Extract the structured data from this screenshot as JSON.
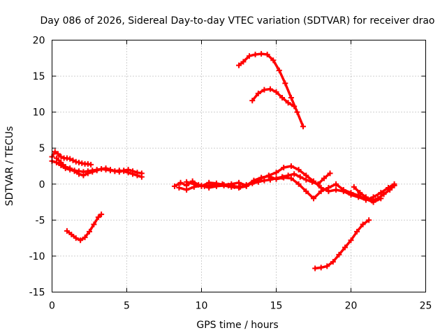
{
  "chart_data": {
    "type": "scatter",
    "title": "Day 086 of 2026, Sidereal Day-to-day VTEC variation (SDTVAR) for receiver drao",
    "xlabel": "GPS time / hours",
    "ylabel": "SDTVAR / TECUs",
    "xlim": [
      0,
      25
    ],
    "ylim": [
      -15,
      20
    ],
    "xticks": [
      "0",
      "5",
      "10",
      "15",
      "20",
      "25"
    ],
    "yticks": [
      "-15",
      "-10",
      "-5",
      "0",
      "5",
      "10",
      "15",
      "20"
    ],
    "grid": true,
    "marker_color": "#ff0000",
    "series": [
      {
        "name": "trace-1",
        "x": [
          0.0,
          0.2,
          0.4,
          0.6,
          0.8,
          1.0,
          1.2,
          1.4,
          1.6,
          1.8,
          2.0,
          2.2,
          2.4,
          2.6
        ],
        "y": [
          3.8,
          4.5,
          4.2,
          3.8,
          3.6,
          3.6,
          3.5,
          3.3,
          3.1,
          3.0,
          2.9,
          2.8,
          2.8,
          2.7
        ]
      },
      {
        "name": "trace-2",
        "x": [
          0.0,
          0.3,
          0.6,
          0.9,
          1.2,
          1.5,
          1.8,
          2.1,
          2.4,
          2.7,
          3.0,
          3.3,
          3.6,
          3.9,
          4.2,
          4.5,
          4.8,
          5.1,
          5.4,
          5.7,
          6.0
        ],
        "y": [
          3.2,
          3.0,
          2.6,
          2.2,
          2.0,
          1.9,
          1.8,
          1.7,
          1.8,
          1.9,
          2.0,
          2.1,
          2.0,
          1.9,
          1.8,
          1.9,
          1.8,
          1.6,
          1.4,
          1.2,
          1.0
        ]
      },
      {
        "name": "trace-3",
        "x": [
          0.3,
          0.6,
          0.9,
          1.2,
          1.5,
          1.8,
          2.1,
          2.4,
          2.7,
          3.0,
          3.3,
          3.6,
          3.9,
          4.2,
          4.5,
          4.8,
          5.1,
          5.4,
          5.7,
          6.0
        ],
        "y": [
          3.6,
          3.0,
          2.4,
          2.2,
          1.8,
          1.4,
          1.2,
          1.5,
          1.7,
          1.9,
          2.1,
          2.2,
          2.0,
          1.8,
          1.7,
          1.9,
          2.0,
          1.8,
          1.6,
          1.5
        ]
      },
      {
        "name": "trace-4",
        "x": [
          1.0,
          1.3,
          1.6,
          1.9,
          2.2,
          2.5,
          2.8,
          3.1,
          3.3
        ],
        "y": [
          -6.5,
          -7.0,
          -7.5,
          -7.8,
          -7.4,
          -6.6,
          -5.6,
          -4.6,
          -4.2
        ]
      },
      {
        "name": "trace-5",
        "x": [
          8.2,
          8.6,
          9.0,
          9.4,
          9.8,
          10.2,
          10.6,
          11.0,
          11.4,
          11.8,
          12.2,
          12.6,
          13.0,
          13.4,
          13.8,
          14.2,
          14.6,
          15.0,
          15.4,
          15.8,
          16.2,
          16.6,
          17.0,
          17.4,
          17.8,
          18.2,
          18.6
        ],
        "y": [
          -0.3,
          0.2,
          -0.2,
          0.4,
          -0.1,
          -0.3,
          -0.2,
          -0.1,
          0.0,
          -0.2,
          -0.3,
          -0.4,
          -0.1,
          0.1,
          0.3,
          0.5,
          0.6,
          0.8,
          1.0,
          1.2,
          1.4,
          1.0,
          0.6,
          0.3,
          0.0,
          0.8,
          1.5
        ]
      },
      {
        "name": "trace-6",
        "x": [
          8.5,
          9.0,
          9.5,
          10.0,
          10.5,
          11.0,
          11.5,
          12.0,
          12.5,
          13.0,
          13.5,
          14.0,
          14.5,
          15.0,
          15.5,
          16.0,
          16.5,
          17.0,
          17.5,
          18.0,
          18.5,
          19.0,
          19.5,
          20.0,
          20.5,
          21.0,
          21.5,
          22.0,
          22.5,
          22.9
        ],
        "y": [
          -0.5,
          -0.8,
          -0.4,
          -0.2,
          -0.5,
          -0.3,
          -0.2,
          -0.4,
          -0.5,
          -0.3,
          0.3,
          0.8,
          1.2,
          1.6,
          2.3,
          2.5,
          2.0,
          1.2,
          0.4,
          -0.5,
          -1.0,
          -0.8,
          -1.0,
          -1.5,
          -1.8,
          -2.2,
          -1.8,
          -1.2,
          -0.5,
          0.0
        ]
      },
      {
        "name": "trace-7",
        "x": [
          9.0,
          9.5,
          10.0,
          10.5,
          11.0,
          11.5,
          12.0,
          12.5,
          13.0,
          13.5,
          14.0,
          14.5,
          15.0,
          15.5,
          16.0,
          16.5,
          17.0,
          17.5,
          18.0,
          18.5,
          19.0,
          19.5,
          20.0,
          20.5,
          21.0,
          21.5,
          22.0
        ],
        "y": [
          0.3,
          0.0,
          -0.3,
          0.2,
          0.1,
          -0.1,
          0.0,
          0.2,
          -0.2,
          0.5,
          0.9,
          1.1,
          0.7,
          0.9,
          0.8,
          0.0,
          -1.0,
          -2.0,
          -1.0,
          -0.5,
          0.0,
          -0.8,
          -1.2,
          -1.6,
          -2.1,
          -2.5,
          -2.0
        ]
      },
      {
        "name": "trace-8",
        "x": [
          12.5,
          12.8,
          13.2,
          13.6,
          14.0,
          14.4,
          14.8,
          15.2,
          15.6,
          16.0,
          16.4,
          16.8
        ],
        "y": [
          16.5,
          17.0,
          17.8,
          18.0,
          18.1,
          18.0,
          17.2,
          15.8,
          14.0,
          12.0,
          10.0,
          8.0
        ]
      },
      {
        "name": "trace-9",
        "x": [
          13.4,
          13.8,
          14.2,
          14.6,
          15.0,
          15.4,
          15.8,
          16.2
        ],
        "y": [
          11.6,
          12.6,
          13.1,
          13.2,
          12.8,
          12.0,
          11.3,
          10.8
        ]
      },
      {
        "name": "trace-10",
        "x": [
          17.6,
          18.0,
          18.4,
          18.8,
          19.2,
          19.6,
          20.0,
          20.4,
          20.8,
          21.2
        ],
        "y": [
          -11.7,
          -11.6,
          -11.4,
          -10.8,
          -9.8,
          -8.8,
          -7.8,
          -6.6,
          -5.6,
          -5.0
        ]
      },
      {
        "name": "trace-11",
        "x": [
          20.2,
          20.6,
          21.0,
          21.4,
          21.8,
          22.2,
          22.6,
          22.9
        ],
        "y": [
          -0.4,
          -1.2,
          -1.8,
          -2.3,
          -2.0,
          -1.4,
          -0.8,
          -0.2
        ]
      }
    ]
  }
}
